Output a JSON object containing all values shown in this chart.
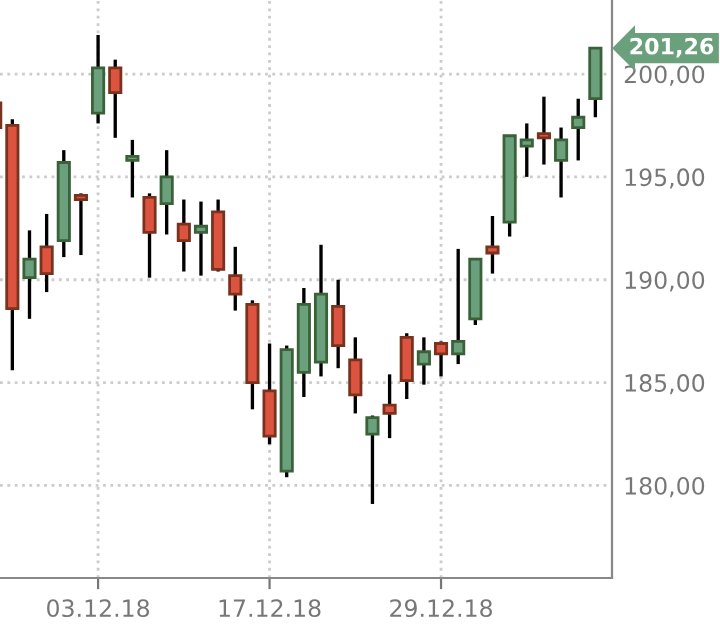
{
  "chart_data": {
    "type": "candlestick",
    "categories": [
      null,
      null,
      null,
      null,
      null,
      null,
      "03.12.18",
      null,
      null,
      null,
      null,
      null,
      null,
      null,
      null,
      null,
      "17.12.18",
      null,
      null,
      null,
      null,
      null,
      null,
      null,
      null,
      null,
      "29.12.18",
      null,
      null,
      null,
      null,
      null,
      null,
      null,
      null,
      null
    ],
    "ohlc": [
      [
        198.6,
        198.6,
        197.4,
        197.4
      ],
      [
        197.5,
        197.8,
        185.6,
        188.6
      ],
      [
        190.1,
        192.4,
        188.1,
        191.0
      ],
      [
        191.6,
        193.2,
        189.4,
        190.3
      ],
      [
        191.9,
        196.3,
        191.1,
        195.7
      ],
      [
        194.1,
        194.2,
        191.2,
        193.9
      ],
      [
        198.1,
        201.9,
        197.6,
        200.3
      ],
      [
        200.3,
        200.7,
        196.9,
        199.1
      ],
      [
        195.8,
        196.8,
        194.0,
        196.0
      ],
      [
        194.0,
        194.2,
        190.1,
        192.3
      ],
      [
        193.7,
        196.3,
        192.2,
        195.0
      ],
      [
        192.7,
        193.9,
        190.4,
        191.9
      ],
      [
        192.3,
        193.8,
        190.2,
        192.6
      ],
      [
        193.3,
        193.9,
        190.4,
        190.5
      ],
      [
        190.2,
        191.6,
        188.5,
        189.3
      ],
      [
        188.8,
        189.0,
        183.7,
        185.0
      ],
      [
        184.6,
        186.9,
        182.0,
        182.4
      ],
      [
        180.7,
        186.8,
        180.4,
        186.6
      ],
      [
        185.5,
        189.6,
        184.3,
        188.8
      ],
      [
        186.0,
        191.7,
        185.3,
        189.3
      ],
      [
        188.7,
        190.0,
        185.7,
        186.8
      ],
      [
        186.1,
        187.2,
        183.5,
        184.4
      ],
      [
        182.5,
        183.4,
        179.1,
        183.3
      ],
      [
        183.9,
        185.4,
        182.3,
        183.5
      ],
      [
        187.2,
        187.4,
        184.2,
        185.1
      ],
      [
        185.9,
        187.2,
        184.9,
        186.5
      ],
      [
        186.9,
        187.0,
        185.3,
        186.4
      ],
      [
        186.4,
        191.5,
        185.9,
        187.0
      ],
      [
        188.1,
        191.0,
        187.8,
        191.0
      ],
      [
        191.6,
        193.1,
        190.3,
        191.3
      ],
      [
        192.8,
        197.0,
        192.1,
        197.0
      ],
      [
        196.5,
        197.6,
        195.0,
        196.8
      ],
      [
        197.1,
        198.9,
        195.6,
        196.9
      ],
      [
        195.8,
        197.4,
        194.0,
        196.8
      ],
      [
        197.4,
        198.8,
        195.8,
        197.9
      ],
      [
        198.8,
        201.3,
        197.9,
        201.26
      ]
    ],
    "colors": [
      "#dc5340",
      "#dc5340",
      "#6aa17c",
      "#dc5340",
      "#6aa17c",
      "#dc5340",
      "#6aa17c",
      "#dc5340",
      "#6aa17c",
      "#dc5340",
      "#6aa17c",
      "#dc5340",
      "#6aa17c",
      "#dc5340",
      "#dc5340",
      "#dc5340",
      "#dc5340",
      "#6aa17c",
      "#6aa17c",
      "#6aa17c",
      "#dc5340",
      "#dc5340",
      "#6aa17c",
      "#dc5340",
      "#dc5340",
      "#6aa17c",
      "#dc5340",
      "#6aa17c",
      "#6aa17c",
      "#dc5340",
      "#6aa17c",
      "#6aa17c",
      "#dc5340",
      "#6aa17c",
      "#6aa17c",
      "#6aa17c"
    ],
    "ylim": [
      175.5,
      203.6
    ],
    "yticks": [
      {
        "value": 180,
        "label": "180,00"
      },
      {
        "value": 185,
        "label": "185,00"
      },
      {
        "value": 190,
        "label": "190,00"
      },
      {
        "value": 195,
        "label": "195,00"
      },
      {
        "value": 200,
        "label": "200,00"
      }
    ],
    "grid": true,
    "annotations": [
      "201,26"
    ]
  }
}
